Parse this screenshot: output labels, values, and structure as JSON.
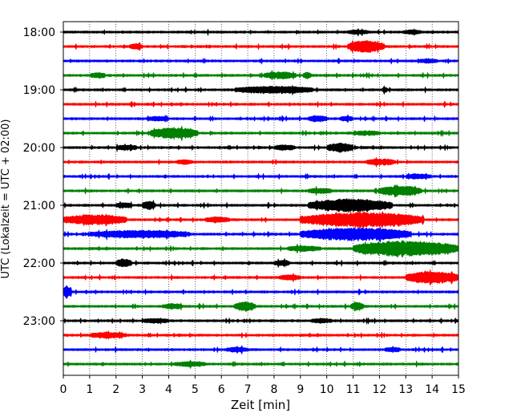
{
  "chart_data": {
    "type": "line",
    "title": "",
    "xlabel": "Zeit  [min]",
    "ylabel": "UTC (Lokalzeit = UTC + 02:00)",
    "xlim": [
      0,
      15
    ],
    "x_ticks": [
      "0",
      "1",
      "2",
      "3",
      "4",
      "5",
      "6",
      "7",
      "8",
      "9",
      "10",
      "11",
      "12",
      "13",
      "14",
      "15"
    ],
    "y_ticks": [
      "18:00",
      "19:00",
      "20:00",
      "21:00",
      "22:00",
      "23:00"
    ],
    "grid": "vertical dotted",
    "trace_interval_min": 15,
    "trace_color_cycle": [
      "#000000",
      "#ff0000",
      "#0000ff",
      "#008000"
    ],
    "series": [
      {
        "start": "18:00",
        "bursts": [
          [
            10.8,
            11.6,
            1.6
          ],
          [
            12.9,
            13.6,
            1.4
          ]
        ]
      },
      {
        "start": "18:15",
        "bursts": [
          [
            10.8,
            12.2,
            5.5
          ],
          [
            2.5,
            3.0,
            2.0
          ]
        ]
      },
      {
        "start": "18:30",
        "bursts": [
          [
            13.5,
            14.2,
            1.5
          ]
        ]
      },
      {
        "start": "18:45",
        "bursts": [
          [
            7.6,
            8.8,
            3.0
          ],
          [
            9.1,
            9.4,
            2.5
          ],
          [
            1.0,
            1.6,
            2.0
          ]
        ]
      },
      {
        "start": "19:00",
        "bursts": [
          [
            6.5,
            9.5,
            3.0
          ],
          [
            12.1,
            12.3,
            2.0
          ]
        ]
      },
      {
        "start": "19:15",
        "bursts": []
      },
      {
        "start": "19:30",
        "bursts": [
          [
            9.3,
            10.0,
            2.4
          ],
          [
            10.5,
            11.0,
            2.0
          ],
          [
            3.2,
            4.0,
            1.6
          ]
        ]
      },
      {
        "start": "19:45",
        "bursts": [
          [
            3.3,
            5.1,
            5.0
          ],
          [
            11.0,
            12.0,
            1.6
          ]
        ]
      },
      {
        "start": "20:00",
        "bursts": [
          [
            10.0,
            11.0,
            4.0
          ],
          [
            8.0,
            8.8,
            2.0
          ],
          [
            2.0,
            2.8,
            1.8
          ]
        ]
      },
      {
        "start": "20:15",
        "bursts": [
          [
            11.5,
            12.6,
            2.4
          ],
          [
            4.3,
            4.9,
            1.6
          ]
        ]
      },
      {
        "start": "20:30",
        "bursts": [
          [
            13.0,
            13.9,
            2.0
          ]
        ]
      },
      {
        "start": "20:45",
        "bursts": [
          [
            12.0,
            13.6,
            4.5
          ],
          [
            9.3,
            10.2,
            2.0
          ]
        ]
      },
      {
        "start": "21:00",
        "bursts": [
          [
            9.3,
            12.5,
            6.0
          ],
          [
            3.0,
            3.5,
            3.5
          ],
          [
            2.0,
            2.6,
            2.0
          ]
        ]
      },
      {
        "start": "21:15",
        "bursts": [
          [
            0.0,
            2.4,
            4.5
          ],
          [
            9.0,
            13.7,
            7.0
          ],
          [
            5.4,
            6.3,
            2.2
          ]
        ]
      },
      {
        "start": "21:30",
        "bursts": [
          [
            1.0,
            4.8,
            3.2
          ],
          [
            9.0,
            13.2,
            6.0
          ]
        ]
      },
      {
        "start": "21:45",
        "bursts": [
          [
            11.0,
            15.0,
            7.5
          ],
          [
            8.5,
            9.8,
            2.0
          ]
        ]
      },
      {
        "start": "22:00",
        "bursts": [
          [
            2.0,
            2.6,
            3.5
          ],
          [
            8.0,
            8.6,
            2.0
          ]
        ]
      },
      {
        "start": "22:15",
        "bursts": [
          [
            13.0,
            15.0,
            5.5
          ],
          [
            8.2,
            9.0,
            2.0
          ]
        ]
      },
      {
        "start": "22:30",
        "bursts": [
          [
            0.0,
            0.3,
            5.5
          ]
        ]
      },
      {
        "start": "22:45",
        "bursts": [
          [
            6.5,
            7.3,
            4.0
          ],
          [
            10.9,
            11.4,
            3.5
          ],
          [
            3.8,
            4.5,
            2.0
          ]
        ]
      },
      {
        "start": "23:00",
        "bursts": [
          [
            3.0,
            4.0,
            1.6
          ],
          [
            9.4,
            10.2,
            1.6
          ]
        ]
      },
      {
        "start": "23:15",
        "bursts": [
          [
            1.0,
            2.4,
            2.2
          ]
        ]
      },
      {
        "start": "23:30",
        "bursts": [
          [
            6.2,
            7.0,
            1.8
          ],
          [
            12.2,
            12.8,
            1.6
          ]
        ]
      },
      {
        "start": "23:45",
        "bursts": [
          [
            4.2,
            5.4,
            1.8
          ]
        ]
      }
    ]
  }
}
